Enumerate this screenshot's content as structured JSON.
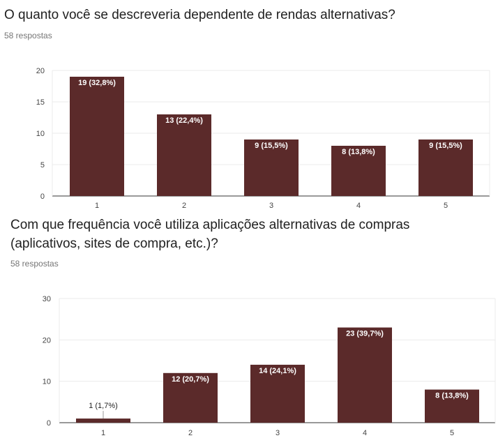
{
  "charts": [
    {
      "question": "O quanto você se descreveria dependente de rendas alternativas?",
      "responses": "58 respostas"
    },
    {
      "question": "Com que frequência você utiliza aplicações alternativas de compras (aplicativos, sites de compra, etc.)?",
      "responses": "58 respostas"
    }
  ],
  "colors": {
    "bar": "#5b2a2a",
    "grid": "#ebebeb",
    "axis": "#333333",
    "label_inside": "#ffffff",
    "label_outside": "#222222"
  },
  "chart_data": [
    {
      "type": "bar",
      "title": "O quanto você se descreveria dependente de rendas alternativas?",
      "categories": [
        "1",
        "2",
        "3",
        "4",
        "5"
      ],
      "values": [
        19,
        13,
        9,
        8,
        9
      ],
      "data_labels": [
        "19 (32,8%)",
        "13 (22,4%)",
        "9 (15,5%)",
        "8 (13,8%)",
        "9 (15,5%)"
      ],
      "yticks": [
        "0",
        "5",
        "10",
        "15",
        "20"
      ],
      "ylim": [
        0,
        20
      ],
      "grid": true
    },
    {
      "type": "bar",
      "title": "Com que frequência você utiliza aplicações alternativas de compras (aplicativos, sites de compra, etc.)?",
      "categories": [
        "1",
        "2",
        "3",
        "4",
        "5"
      ],
      "values": [
        1,
        12,
        14,
        23,
        8
      ],
      "data_labels": [
        "1 (1,7%)",
        "12 (20,7%)",
        "14 (24,1%)",
        "23 (39,7%)",
        "8 (13,8%)"
      ],
      "yticks": [
        "0",
        "10",
        "20",
        "30"
      ],
      "ylim": [
        0,
        30
      ],
      "grid": true
    }
  ]
}
